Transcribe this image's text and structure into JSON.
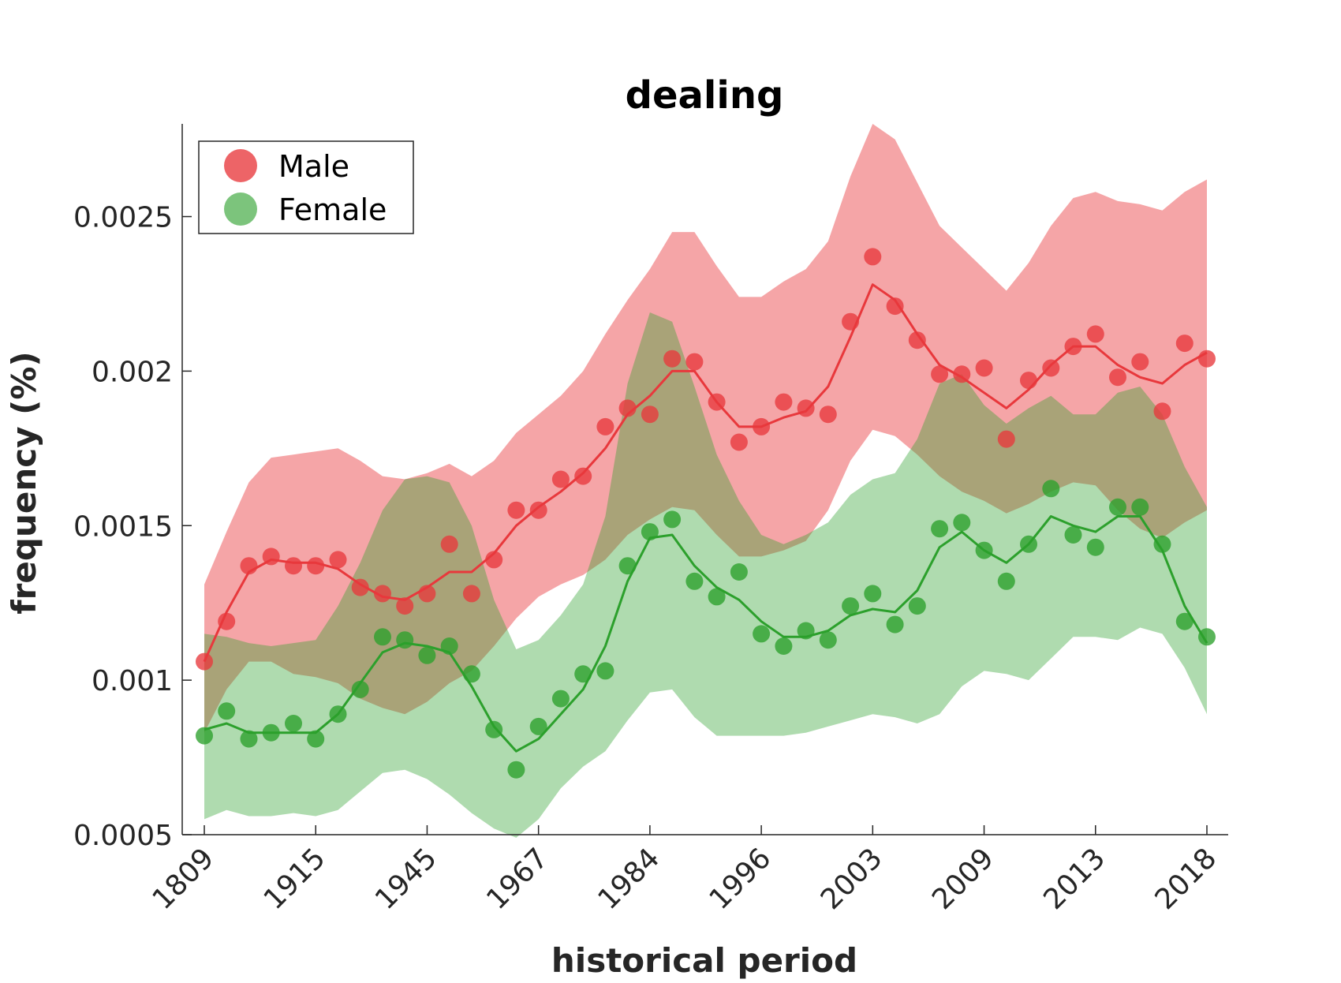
{
  "chart_data": {
    "type": "line",
    "title": "dealing",
    "xlabel": "historical period",
    "ylabel": "frequency (%)",
    "x_tick_labels": [
      "1809",
      "1915",
      "1945",
      "1967",
      "1984",
      "1996",
      "2003",
      "2009",
      "2013",
      "2018"
    ],
    "y_ticks": [
      0.0005,
      0.001,
      0.0015,
      0.002,
      0.0025
    ],
    "y_tick_labels": [
      "0.0005",
      "0.001",
      "0.0015",
      "0.002",
      "0.0025"
    ],
    "ylim": [
      0.0005,
      0.0028
    ],
    "x_index_range": [
      0,
      45
    ],
    "x_tick_index_step": 5,
    "grid": false,
    "legend_position": "top-left",
    "series": [
      {
        "name": "Male",
        "color": "#e8383c",
        "points": [
          0.00106,
          0.00119,
          0.00137,
          0.0014,
          0.00137,
          0.00137,
          0.00139,
          0.0013,
          0.00128,
          0.00124,
          0.00128,
          0.00144,
          0.00128,
          0.00139,
          0.00155,
          0.00155,
          0.00165,
          0.00166,
          0.00182,
          0.00188,
          0.00186,
          0.00204,
          0.00203,
          0.0019,
          0.00177,
          0.00182,
          0.0019,
          0.00188,
          0.00186,
          0.00216,
          0.00237,
          0.00221,
          0.0021,
          0.00199,
          0.00199,
          0.00201,
          0.00178,
          0.00197,
          0.00201,
          0.00208,
          0.00212,
          0.00198,
          0.00203,
          0.00187,
          0.00209,
          0.00204
        ],
        "smoothed": [
          0.00106,
          0.00122,
          0.00135,
          0.00139,
          0.00138,
          0.00138,
          0.00136,
          0.00131,
          0.00127,
          0.00126,
          0.0013,
          0.00135,
          0.00135,
          0.00141,
          0.0015,
          0.00156,
          0.00161,
          0.00167,
          0.00175,
          0.00186,
          0.00192,
          0.002,
          0.002,
          0.0019,
          0.00182,
          0.00182,
          0.00185,
          0.00187,
          0.00195,
          0.00211,
          0.00228,
          0.00223,
          0.00212,
          0.00202,
          0.00198,
          0.00193,
          0.00188,
          0.00194,
          0.00202,
          0.00208,
          0.00208,
          0.00202,
          0.00198,
          0.00196,
          0.00202,
          0.00206
        ],
        "upper": [
          0.00131,
          0.00148,
          0.00164,
          0.00172,
          0.00173,
          0.00174,
          0.00175,
          0.00171,
          0.00166,
          0.00165,
          0.00167,
          0.0017,
          0.00166,
          0.00171,
          0.0018,
          0.00186,
          0.00192,
          0.002,
          0.00212,
          0.00223,
          0.00233,
          0.00245,
          0.00245,
          0.00234,
          0.00224,
          0.00224,
          0.00229,
          0.00233,
          0.00242,
          0.00263,
          0.0028,
          0.00275,
          0.00261,
          0.00247,
          0.0024,
          0.00233,
          0.00226,
          0.00235,
          0.00247,
          0.00256,
          0.00258,
          0.00255,
          0.00254,
          0.00252,
          0.00258,
          0.00262
        ],
        "lower": [
          0.00083,
          0.00097,
          0.00106,
          0.00106,
          0.00102,
          0.00101,
          0.00099,
          0.00094,
          0.00091,
          0.00089,
          0.00093,
          0.00099,
          0.00103,
          0.00111,
          0.0012,
          0.00127,
          0.00131,
          0.00134,
          0.00139,
          0.00147,
          0.00152,
          0.00156,
          0.00155,
          0.00147,
          0.0014,
          0.0014,
          0.00142,
          0.00145,
          0.00155,
          0.00171,
          0.00181,
          0.00179,
          0.00173,
          0.00166,
          0.00161,
          0.00158,
          0.00154,
          0.00157,
          0.00161,
          0.00164,
          0.00163,
          0.00155,
          0.00149,
          0.00146,
          0.00151,
          0.00155
        ]
      },
      {
        "name": "Female",
        "color": "#2ca02c",
        "points": [
          0.00082,
          0.0009,
          0.00081,
          0.00083,
          0.00086,
          0.00081,
          0.00089,
          0.00097,
          0.00114,
          0.00113,
          0.00108,
          0.00111,
          0.00102,
          0.00084,
          0.00071,
          0.00085,
          0.00094,
          0.00102,
          0.00103,
          0.00137,
          0.00148,
          0.00152,
          0.00132,
          0.00127,
          0.00135,
          0.00115,
          0.00111,
          0.00116,
          0.00113,
          0.00124,
          0.00128,
          0.00118,
          0.00124,
          0.00149,
          0.00151,
          0.00142,
          0.00132,
          0.00144,
          0.00162,
          0.00147,
          0.00143,
          0.00156,
          0.00156,
          0.00144,
          0.00119,
          0.00114
        ],
        "smoothed": [
          0.00084,
          0.00086,
          0.00083,
          0.00083,
          0.00083,
          0.00083,
          0.00089,
          0.00099,
          0.00109,
          0.00112,
          0.00111,
          0.00109,
          0.00098,
          0.00085,
          0.00077,
          0.00081,
          0.00089,
          0.00097,
          0.00111,
          0.00132,
          0.00146,
          0.00147,
          0.00137,
          0.0013,
          0.00126,
          0.00119,
          0.00114,
          0.00114,
          0.00116,
          0.00121,
          0.00123,
          0.00122,
          0.00129,
          0.00143,
          0.00148,
          0.00142,
          0.00138,
          0.00144,
          0.00153,
          0.0015,
          0.00148,
          0.00153,
          0.00153,
          0.00142,
          0.00124,
          0.00112
        ],
        "upper": [
          0.00115,
          0.00114,
          0.00112,
          0.00111,
          0.00112,
          0.00113,
          0.00124,
          0.00138,
          0.00155,
          0.00165,
          0.00166,
          0.00164,
          0.0015,
          0.00126,
          0.0011,
          0.00113,
          0.00121,
          0.00131,
          0.00153,
          0.00196,
          0.00219,
          0.00216,
          0.00195,
          0.00173,
          0.00158,
          0.00147,
          0.00144,
          0.00147,
          0.00151,
          0.0016,
          0.00165,
          0.00167,
          0.00178,
          0.00196,
          0.00199,
          0.00189,
          0.00183,
          0.00188,
          0.00192,
          0.00186,
          0.00186,
          0.00193,
          0.00195,
          0.00186,
          0.00169,
          0.00156
        ],
        "lower": [
          0.00055,
          0.00058,
          0.00056,
          0.00056,
          0.00057,
          0.00056,
          0.00058,
          0.00064,
          0.0007,
          0.00071,
          0.00068,
          0.00063,
          0.00057,
          0.00052,
          0.00049,
          0.00055,
          0.00065,
          0.00072,
          0.00077,
          0.00087,
          0.00096,
          0.00097,
          0.00088,
          0.00082,
          0.00082,
          0.00082,
          0.00082,
          0.00083,
          0.00085,
          0.00087,
          0.00089,
          0.00088,
          0.00086,
          0.00089,
          0.00098,
          0.00103,
          0.00102,
          0.001,
          0.00107,
          0.00114,
          0.00114,
          0.00113,
          0.00117,
          0.00115,
          0.00104,
          0.00089
        ]
      }
    ]
  }
}
